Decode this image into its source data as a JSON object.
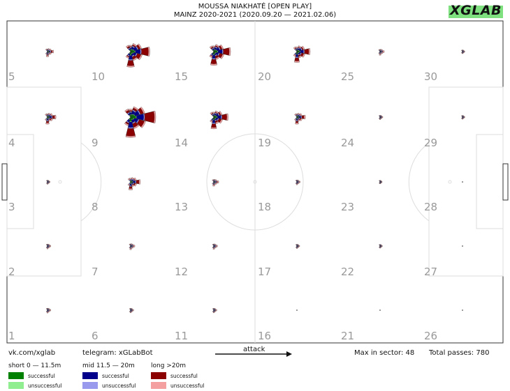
{
  "header": {
    "title": "MOUSSA NIAKHATÉ [OPEN PLAY]",
    "subtitle": "MAINZ 2020-2021 (2020.09.20 — 2021.02.06)",
    "logo": "XGLAB"
  },
  "footer": {
    "vk": "vk.com/xglab",
    "telegram": "telegram: xGLabBot",
    "attack": "attack",
    "max_sector": "Max in sector: 48",
    "total_passes": "Total passes: 780"
  },
  "legend": {
    "short": {
      "title": "short 0 — 11.5m",
      "successful": "successful",
      "unsuccessful": "unsuccessful"
    },
    "mid": {
      "title": "mid 11.5 — 20m",
      "successful": "successful",
      "unsuccessful": "unsuccessful"
    },
    "long": {
      "title": "long >20m",
      "successful": "successful",
      "unsuccessful": "unsuccessful"
    }
  },
  "colors": {
    "short_success": "#008000",
    "short_fail": "#90ee90",
    "mid_success": "#00008b",
    "mid_fail": "#9999ee",
    "long_success": "#8b0000",
    "long_fail": "#f4a0a0"
  },
  "chart_data": {
    "type": "pass-sonar-grid",
    "max_in_sector": 48,
    "total_passes": 780,
    "grid": {
      "columns": 6,
      "rows": 5
    },
    "zones": [
      {
        "label": "1",
        "col": 0,
        "row": 0,
        "size": 0.08
      },
      {
        "label": "2",
        "col": 0,
        "row": 1,
        "size": 0.08
      },
      {
        "label": "3",
        "col": 0,
        "row": 2,
        "size": 0.05
      },
      {
        "label": "4",
        "col": 0,
        "row": 3,
        "size": 0.3
      },
      {
        "label": "5",
        "col": 0,
        "row": 4,
        "size": 0.2
      },
      {
        "label": "6",
        "col": 1,
        "row": 0,
        "size": 0.07
      },
      {
        "label": "7",
        "col": 1,
        "row": 1,
        "size": 0.12
      },
      {
        "label": "8",
        "col": 1,
        "row": 2,
        "size": 0.35
      },
      {
        "label": "9",
        "col": 1,
        "row": 3,
        "size": 1.0
      },
      {
        "label": "10",
        "col": 1,
        "row": 4,
        "size": 0.75
      },
      {
        "label": "11",
        "col": 2,
        "row": 0,
        "size": 0.07
      },
      {
        "label": "12",
        "col": 2,
        "row": 1,
        "size": 0.1
      },
      {
        "label": "13",
        "col": 2,
        "row": 2,
        "size": 0.15
      },
      {
        "label": "14",
        "col": 2,
        "row": 3,
        "size": 0.55
      },
      {
        "label": "15",
        "col": 2,
        "row": 4,
        "size": 0.65
      },
      {
        "label": "16",
        "col": 3,
        "row": 0,
        "size": 0.0
      },
      {
        "label": "17",
        "col": 3,
        "row": 1,
        "size": 0.06
      },
      {
        "label": "18",
        "col": 3,
        "row": 2,
        "size": 0.08
      },
      {
        "label": "19",
        "col": 3,
        "row": 3,
        "size": 0.3
      },
      {
        "label": "20",
        "col": 3,
        "row": 4,
        "size": 0.5
      },
      {
        "label": "21",
        "col": 4,
        "row": 0,
        "size": 0.0
      },
      {
        "label": "22",
        "col": 4,
        "row": 1,
        "size": 0.04
      },
      {
        "label": "23",
        "col": 4,
        "row": 2,
        "size": 0.03
      },
      {
        "label": "24",
        "col": 4,
        "row": 3,
        "size": 0.06
      },
      {
        "label": "25",
        "col": 4,
        "row": 4,
        "size": 0.12
      },
      {
        "label": "26",
        "col": 5,
        "row": 0,
        "size": 0.0
      },
      {
        "label": "27",
        "col": 5,
        "row": 1,
        "size": 0.0
      },
      {
        "label": "28",
        "col": 5,
        "row": 2,
        "size": 0.0
      },
      {
        "label": "29",
        "col": 5,
        "row": 3,
        "size": 0.04
      },
      {
        "label": "30",
        "col": 5,
        "row": 4,
        "size": 0.04
      }
    ]
  }
}
